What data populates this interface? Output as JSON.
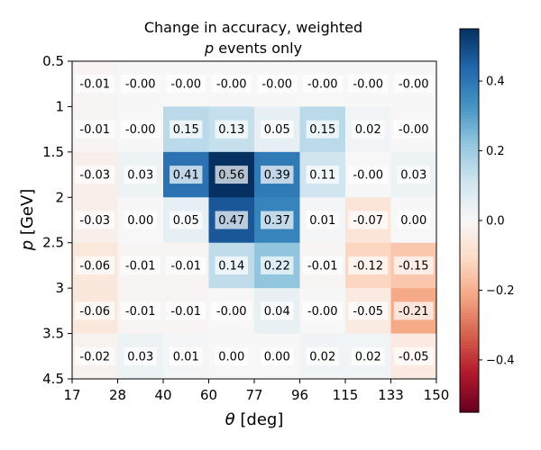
{
  "chart_data": {
    "type": "heatmap",
    "title_line1": "Change in accuracy, weighted",
    "title_line2_var": "p",
    "title_line2_rest": " events only",
    "xlabel_symbol": "θ",
    "xlabel_unit": " [deg]",
    "ylabel_symbol": "p",
    "ylabel_unit": " [GeV]",
    "x_tick_labels": [
      "17",
      "28",
      "40",
      "60",
      "77",
      "96",
      "115",
      "133",
      "150"
    ],
    "y_tick_labels": [
      "0.5",
      "1",
      "1.5",
      "2",
      "2.5",
      "3",
      "3.5",
      "4.5"
    ],
    "values": [
      [
        -0.01,
        -0.0,
        -0.0,
        -0.0,
        -0.0,
        -0.0,
        -0.0,
        -0.0
      ],
      [
        -0.01,
        -0.0,
        0.15,
        0.13,
        0.05,
        0.15,
        0.02,
        -0.0
      ],
      [
        -0.03,
        0.03,
        0.41,
        0.56,
        0.39,
        0.11,
        -0.0,
        0.03
      ],
      [
        -0.03,
        0.0,
        0.05,
        0.47,
        0.37,
        0.01,
        -0.07,
        0.0
      ],
      [
        -0.06,
        -0.01,
        -0.01,
        0.14,
        0.22,
        -0.01,
        -0.12,
        -0.15
      ],
      [
        -0.06,
        -0.01,
        -0.01,
        -0.0,
        0.04,
        -0.0,
        -0.05,
        -0.21
      ],
      [
        -0.02,
        0.03,
        0.01,
        0.0,
        0.0,
        0.02,
        0.02,
        -0.05
      ]
    ],
    "value_labels": [
      [
        "-0.01",
        "-0.00",
        "-0.00",
        "-0.00",
        "-0.00",
        "-0.00",
        "-0.00",
        "-0.00"
      ],
      [
        "-0.01",
        "-0.00",
        "0.15",
        "0.13",
        "0.05",
        "0.15",
        "0.02",
        "-0.00"
      ],
      [
        "-0.03",
        "0.03",
        "0.41",
        "0.56",
        "0.39",
        "0.11",
        "-0.00",
        "0.03"
      ],
      [
        "-0.03",
        "0.00",
        "0.05",
        "0.47",
        "0.37",
        "0.01",
        "-0.07",
        "0.00"
      ],
      [
        "-0.06",
        "-0.01",
        "-0.01",
        "0.14",
        "0.22",
        "-0.01",
        "-0.12",
        "-0.15"
      ],
      [
        "-0.06",
        "-0.01",
        "-0.01",
        "-0.00",
        "0.04",
        "-0.00",
        "-0.05",
        "-0.21"
      ],
      [
        "-0.02",
        "0.03",
        "0.01",
        "0.00",
        "0.00",
        "0.02",
        "0.02",
        "-0.05"
      ]
    ],
    "colormap": "RdBu",
    "vmin": -0.55,
    "vmax": 0.55,
    "colorbar_ticks": [
      0.4,
      0.2,
      0.0,
      -0.2,
      -0.4
    ],
    "colorbar_tick_labels": [
      "0.4",
      "0.2",
      "0.0",
      "−0.2",
      "−0.4"
    ]
  }
}
